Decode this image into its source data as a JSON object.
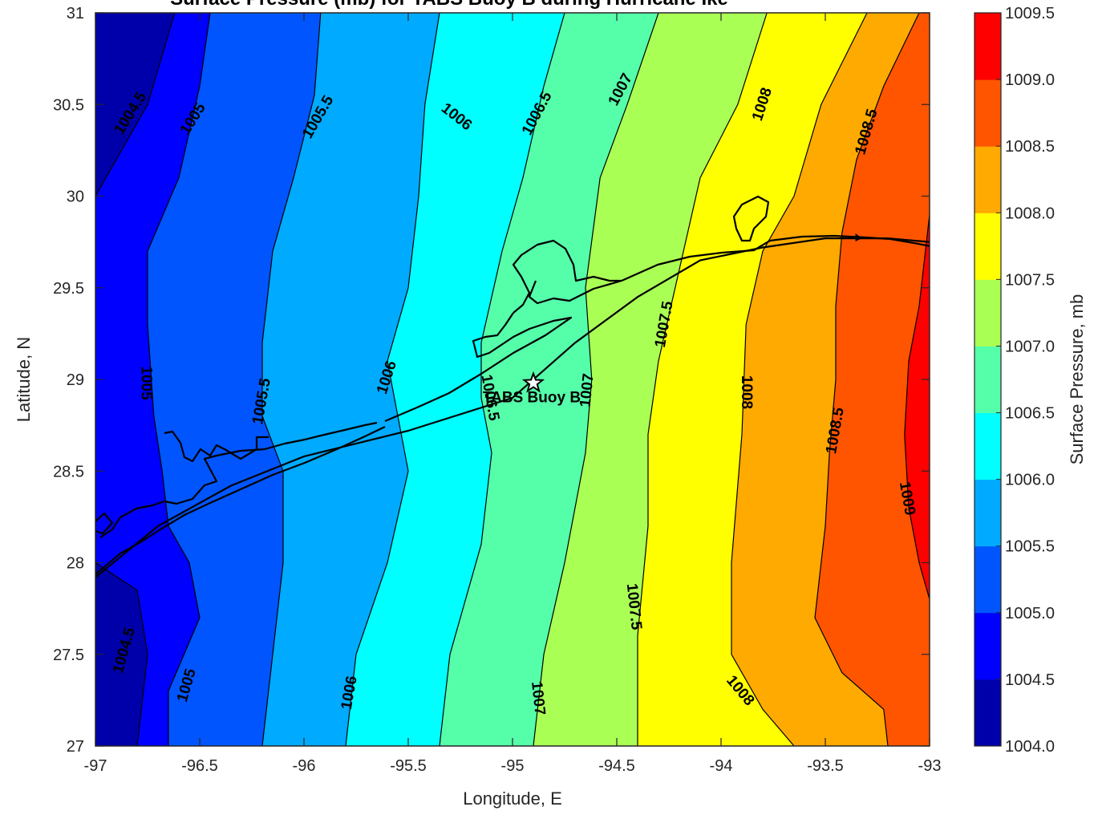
{
  "chart_data": {
    "type": "contour",
    "title": "Surface Pressure (mb) for TABS Buoy B during Hurricane Ike",
    "xlabel": "Longitude, E",
    "ylabel": "Latitude, N",
    "xlim": [
      -97,
      -93
    ],
    "ylim": [
      27,
      31
    ],
    "xticks": [
      "-97",
      "-96.5",
      "-96",
      "-95.5",
      "-95",
      "-94.5",
      "-94",
      "-93.5",
      "-93"
    ],
    "yticks": [
      "27",
      "27.5",
      "28",
      "28.5",
      "29",
      "29.5",
      "30",
      "30.5",
      "31"
    ],
    "levels": [
      1004.0,
      1004.5,
      1005.0,
      1005.5,
      1006.0,
      1006.5,
      1007.0,
      1007.5,
      1008.0,
      1008.5,
      1009.0,
      1009.5
    ],
    "colorbar": {
      "label": "Surface Pressure, mb",
      "tick_labels": [
        "1004.0",
        "1004.5",
        "1005.0",
        "1005.5",
        "1006.0",
        "1006.5",
        "1007.0",
        "1007.5",
        "1008.0",
        "1008.5",
        "1009.0",
        "1009.5"
      ],
      "colors": [
        "#0000AA",
        "#0000FF",
        "#0055FF",
        "#00AAFF",
        "#00FFFF",
        "#55FFAA",
        "#AAFF55",
        "#FFFF00",
        "#FFAA00",
        "#FF5500",
        "#FF0000"
      ]
    },
    "contours": [
      {
        "level": 1004.5,
        "points": [
          [
            -96.62,
            31
          ],
          [
            -96.75,
            30.5
          ],
          [
            -96.95,
            30.1
          ],
          [
            -97,
            30.0
          ]
        ]
      },
      {
        "level": 1004.5,
        "points": [
          [
            -97,
            28.0
          ],
          [
            -96.8,
            27.85
          ],
          [
            -96.75,
            27.5
          ],
          [
            -96.8,
            27.0
          ]
        ]
      },
      {
        "level": 1005.0,
        "points": [
          [
            -96.45,
            31
          ],
          [
            -96.5,
            30.6
          ],
          [
            -96.6,
            30.1
          ],
          [
            -96.75,
            29.7
          ],
          [
            -96.75,
            29.3
          ],
          [
            -96.72,
            28.8
          ],
          [
            -96.68,
            28.5
          ],
          [
            -96.65,
            28.2
          ],
          [
            -96.55,
            28.0
          ],
          [
            -96.5,
            27.7
          ],
          [
            -96.65,
            27.3
          ],
          [
            -96.65,
            27.0
          ]
        ]
      },
      {
        "level": 1005.5,
        "points": [
          [
            -95.92,
            31
          ],
          [
            -95.95,
            30.55
          ],
          [
            -96.05,
            30.1
          ],
          [
            -96.15,
            29.7
          ],
          [
            -96.2,
            29.2
          ],
          [
            -96.2,
            28.8
          ],
          [
            -96.1,
            28.5
          ],
          [
            -96.1,
            28.0
          ],
          [
            -96.15,
            27.5
          ],
          [
            -96.2,
            27.0
          ]
        ]
      },
      {
        "level": 1006.0,
        "points": [
          [
            -95.35,
            31
          ],
          [
            -95.42,
            30.5
          ],
          [
            -95.45,
            30.0
          ],
          [
            -95.5,
            29.5
          ],
          [
            -95.6,
            29.1
          ],
          [
            -95.55,
            28.8
          ],
          [
            -95.5,
            28.5
          ],
          [
            -95.6,
            28.0
          ],
          [
            -95.75,
            27.5
          ],
          [
            -95.8,
            27.0
          ]
        ]
      },
      {
        "level": 1006.5,
        "points": [
          [
            -94.75,
            31
          ],
          [
            -94.85,
            30.6
          ],
          [
            -94.95,
            30.1
          ],
          [
            -95.05,
            29.7
          ],
          [
            -95.15,
            29.2
          ],
          [
            -95.15,
            28.9
          ],
          [
            -95.1,
            28.6
          ],
          [
            -95.15,
            28.1
          ],
          [
            -95.3,
            27.5
          ],
          [
            -95.35,
            27.0
          ]
        ]
      },
      {
        "level": 1007.0,
        "points": [
          [
            -94.3,
            31
          ],
          [
            -94.45,
            30.5
          ],
          [
            -94.58,
            30.1
          ],
          [
            -94.65,
            29.5
          ],
          [
            -94.62,
            29.0
          ],
          [
            -94.65,
            28.6
          ],
          [
            -94.75,
            28.0
          ],
          [
            -94.85,
            27.5
          ],
          [
            -94.9,
            27.0
          ]
        ]
      },
      {
        "level": 1007.5,
        "points": [
          [
            -93.78,
            31
          ],
          [
            -93.92,
            30.5
          ],
          [
            -94.1,
            30.1
          ],
          [
            -94.2,
            29.6
          ],
          [
            -94.3,
            29.1
          ],
          [
            -94.35,
            28.7
          ],
          [
            -94.35,
            28.2
          ],
          [
            -94.4,
            27.6
          ],
          [
            -94.4,
            27.0
          ]
        ]
      },
      {
        "level": 1008.0,
        "points": [
          [
            -93.3,
            31
          ],
          [
            -93.52,
            30.5
          ],
          [
            -93.65,
            30.0
          ],
          [
            -93.8,
            29.7
          ],
          [
            -93.88,
            29.3
          ],
          [
            -93.9,
            28.7
          ],
          [
            -93.95,
            28.0
          ],
          [
            -93.95,
            27.5
          ],
          [
            -93.8,
            27.2
          ],
          [
            -93.65,
            27.0
          ]
        ]
      },
      {
        "level": 1008.5,
        "points": [
          [
            -93.05,
            31
          ],
          [
            -93.22,
            30.6
          ],
          [
            -93.35,
            30.2
          ],
          [
            -93.42,
            29.8
          ],
          [
            -93.45,
            29.4
          ],
          [
            -93.45,
            29.0
          ],
          [
            -93.48,
            28.6
          ],
          [
            -93.5,
            28.2
          ],
          [
            -93.55,
            27.7
          ],
          [
            -93.42,
            27.4
          ],
          [
            -93.22,
            27.2
          ],
          [
            -93.2,
            27.0
          ]
        ]
      },
      {
        "level": 1009.0,
        "points": [
          [
            -93,
            29.9
          ],
          [
            -93.05,
            29.4
          ],
          [
            -93.1,
            29.1
          ],
          [
            -93.12,
            28.7
          ],
          [
            -93.1,
            28.3
          ],
          [
            -93.05,
            28.0
          ],
          [
            -93.0,
            27.8
          ]
        ]
      }
    ],
    "contour_labels": [
      {
        "text": "1004.5",
        "x": -96.83,
        "y": 30.45,
        "angle": -58
      },
      {
        "text": "1005",
        "x": -96.53,
        "y": 30.42,
        "angle": -58
      },
      {
        "text": "1005.5",
        "x": -95.93,
        "y": 30.43,
        "angle": -60
      },
      {
        "text": "1006",
        "x": -95.27,
        "y": 30.43,
        "angle": 38
      },
      {
        "text": "1006.5",
        "x": -94.88,
        "y": 30.45,
        "angle": -62
      },
      {
        "text": "1007",
        "x": -94.48,
        "y": 30.58,
        "angle": -62
      },
      {
        "text": "1008",
        "x": -93.8,
        "y": 30.5,
        "angle": -72
      },
      {
        "text": "1008.5",
        "x": -93.3,
        "y": 30.35,
        "angle": -74
      },
      {
        "text": "1005",
        "x": -96.76,
        "y": 28.98,
        "angle": 90
      },
      {
        "text": "1005.5",
        "x": -96.2,
        "y": 28.88,
        "angle": -80
      },
      {
        "text": "1006",
        "x": -95.6,
        "y": 29.01,
        "angle": -72
      },
      {
        "text": "1006.5",
        "x": -95.11,
        "y": 28.9,
        "angle": 80
      },
      {
        "text": "1007",
        "x": -94.64,
        "y": 28.94,
        "angle": -84
      },
      {
        "text": "1007.5",
        "x": -94.27,
        "y": 29.3,
        "angle": -80
      },
      {
        "text": "1008",
        "x": -93.88,
        "y": 28.93,
        "angle": 90
      },
      {
        "text": "1008.5",
        "x": -93.45,
        "y": 28.72,
        "angle": -80
      },
      {
        "text": "1009",
        "x": -93.11,
        "y": 28.35,
        "angle": 80
      },
      {
        "text": "1007.5",
        "x": -94.42,
        "y": 27.76,
        "angle": 84
      },
      {
        "text": "1004.5",
        "x": -96.86,
        "y": 27.52,
        "angle": -74
      },
      {
        "text": "1005",
        "x": -96.56,
        "y": 27.33,
        "angle": -74
      },
      {
        "text": "1006",
        "x": -95.78,
        "y": 27.29,
        "angle": -80
      },
      {
        "text": "1007",
        "x": -94.88,
        "y": 27.26,
        "angle": 84
      },
      {
        "text": "1008",
        "x": -93.91,
        "y": 27.3,
        "angle": 50
      }
    ],
    "track": [
      [
        -97,
        27.92
      ],
      [
        -96.7,
        28.2
      ],
      [
        -96.35,
        28.42
      ],
      [
        -96.0,
        28.58
      ],
      [
        -95.5,
        28.72
      ],
      [
        -95.0,
        28.9
      ],
      [
        -94.7,
        29.2
      ],
      [
        -94.4,
        29.45
      ],
      [
        -94.1,
        29.65
      ],
      [
        -93.8,
        29.72
      ],
      [
        -93.5,
        29.77
      ],
      [
        -93.2,
        29.77
      ],
      [
        -93.0,
        29.75
      ]
    ],
    "track_marker": [
      -93.34,
      29.77
    ],
    "station": {
      "name": "TABS Buoy B",
      "x": -94.9,
      "y": 28.98
    }
  }
}
